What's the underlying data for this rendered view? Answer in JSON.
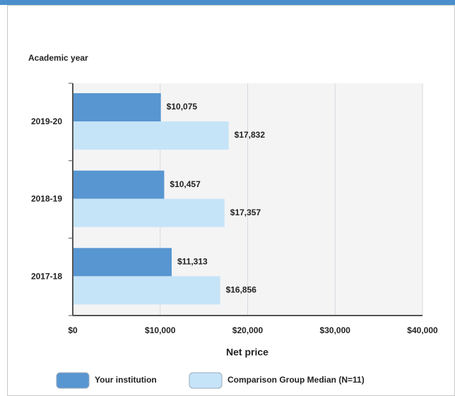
{
  "chart_data": {
    "type": "hbar",
    "y_label": "Academic year",
    "x_label": "Net price",
    "categories": [
      "2019-20",
      "2018-19",
      "2017-18"
    ],
    "series": [
      {
        "name": "Your institution",
        "color": "#5896d1",
        "values": [
          10075,
          10457,
          11313
        ],
        "value_labels": [
          "$10,075",
          "$10,457",
          "$11,313"
        ]
      },
      {
        "name": "Comparison Group Median (N=11)",
        "color": "#c6e4f8",
        "values": [
          17832,
          17357,
          16856
        ],
        "value_labels": [
          "$17,832",
          "$17,357",
          "$16,856"
        ]
      }
    ],
    "xlim": [
      0,
      40000
    ],
    "xticks": [
      {
        "value": 0,
        "label": "$0"
      },
      {
        "value": 10000,
        "label": "$10,000"
      },
      {
        "value": 20000,
        "label": "$20,000"
      },
      {
        "value": 30000,
        "label": "$30,000"
      },
      {
        "value": 40000,
        "label": "$40,000"
      }
    ],
    "grid": true,
    "legend": "bottom"
  }
}
